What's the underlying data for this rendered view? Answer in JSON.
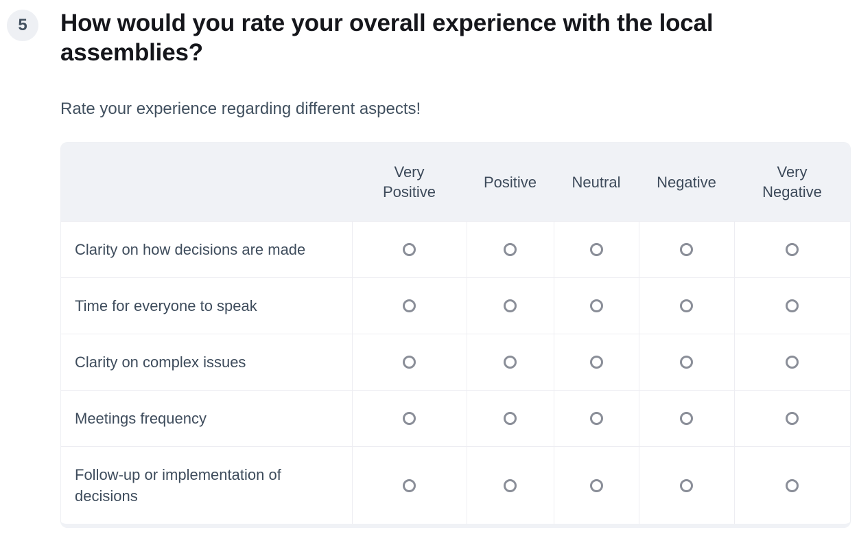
{
  "question": {
    "number": "5",
    "title": "How would you rate your overall experience with the local assemblies?",
    "subtitle": "Rate your experience regarding different aspects!"
  },
  "matrix": {
    "columns": [
      "Very\nPositive",
      "Positive",
      "Neutral",
      "Negative",
      "Very\nNegative"
    ],
    "rows": [
      "Clarity on how decisions are made",
      "Time for everyone to speak",
      "Clarity on complex issues",
      "Meetings frequency",
      "Follow-up or implementation of decisions"
    ],
    "selected": null
  },
  "colors": {
    "header_bg": "#f0f2f6",
    "badge_bg": "#eef0f4",
    "title_text": "#15161b",
    "body_text": "#3e4c5c",
    "radio_border": "#8a8e98",
    "divider": "#ededf2"
  }
}
